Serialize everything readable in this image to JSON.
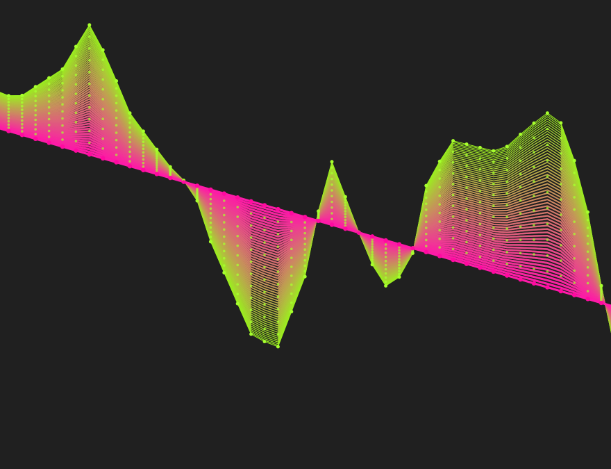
{
  "colors": {
    "background": "#202020",
    "start": "#9bf01f",
    "end": "#ff1aa8",
    "node_fill": "#a6ff2e",
    "end_node_fill": "#ff0aa0"
  },
  "animation": {
    "line_count": 58,
    "opacity_start": 0.95,
    "opacity_end": 0.9
  }
}
